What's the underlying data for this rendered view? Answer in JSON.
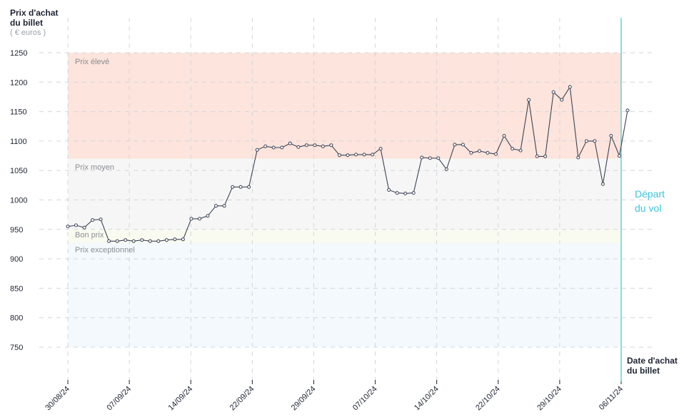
{
  "y_axis": {
    "title_line1": "Prix d'achat",
    "title_line2": "du billet",
    "unit": "( € euros )"
  },
  "x_axis": {
    "title_line1": "Date d'achat",
    "title_line2": "du billet"
  },
  "departure": {
    "line1": "Départ",
    "line2": "du vol",
    "color": "#3cc6dd"
  },
  "colors": {
    "line": "#3b4457",
    "eleve": "#fde4dc",
    "moyen": "#f6f6f6",
    "bon": "#fafbf0",
    "exceptionnel": "#f3f9fc"
  },
  "chart_data": {
    "type": "line",
    "ylim": [
      700,
      1270
    ],
    "grid": true,
    "yticks": [
      750,
      800,
      850,
      900,
      950,
      1000,
      1050,
      1100,
      1150,
      1200,
      1250
    ],
    "x_tick_labels": [
      "30/08/24",
      "07/09/24",
      "14/09/24",
      "22/09/24",
      "29/09/24",
      "07/10/24",
      "14/10/24",
      "22/10/24",
      "29/10/24",
      "06/11/24"
    ],
    "zones": [
      {
        "label": "Prix élevé",
        "from": 1070,
        "to": 1250
      },
      {
        "label": "Prix moyen",
        "from": 950,
        "to": 1070
      },
      {
        "label": "Bon prix",
        "from": 927,
        "to": 950
      },
      {
        "label": "Prix exceptionnel",
        "from": 750,
        "to": 927
      }
    ],
    "series": [
      {
        "values": [
          955,
          957,
          953,
          966,
          967,
          930,
          930,
          932,
          930,
          932,
          930,
          930,
          932,
          933,
          933,
          968,
          968,
          973,
          990,
          990,
          1022,
          1022,
          1022,
          1085,
          1091,
          1089,
          1089,
          1096,
          1090,
          1093,
          1093,
          1091,
          1093,
          1076,
          1076,
          1077,
          1077,
          1077,
          1087,
          1017,
          1012,
          1011,
          1012,
          1072,
          1071,
          1071,
          1052,
          1094,
          1094,
          1080,
          1083,
          1080,
          1078,
          1109,
          1087,
          1084,
          1170,
          1074,
          1074,
          1183,
          1170,
          1192,
          1072,
          1100,
          1100,
          1027,
          1109,
          1075,
          1152
        ]
      }
    ]
  }
}
